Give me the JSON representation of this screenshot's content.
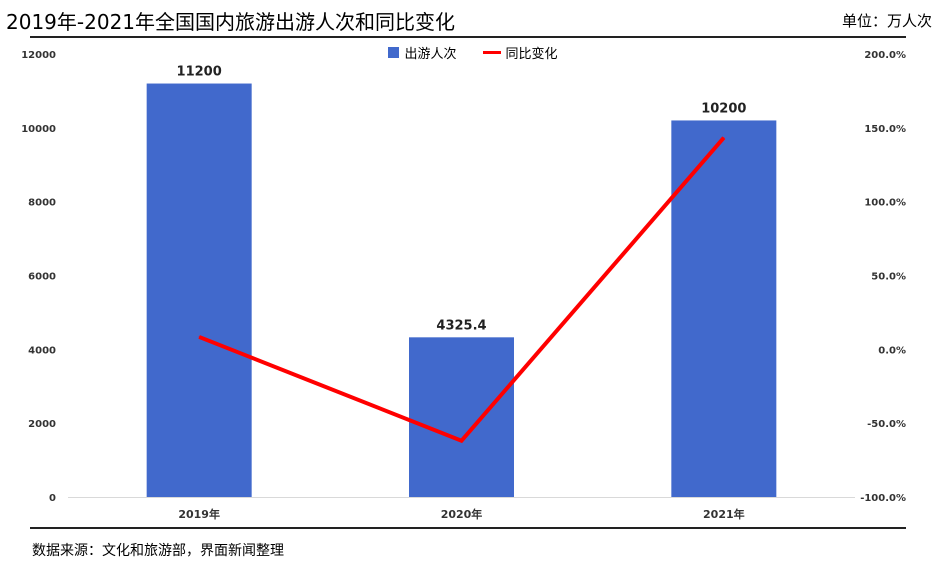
{
  "header": {
    "title": "2019年-2021年全国国内旅游出游人次和同比变化",
    "unit": "单位：万人次"
  },
  "footer": {
    "source": "数据来源：文化和旅游部，界面新闻整理"
  },
  "colors": {
    "bar": "#4169cc",
    "line": "#ff0000",
    "axis": "#d9d9d9"
  },
  "chart_data": {
    "type": "bar",
    "categories": [
      "2019年",
      "2020年",
      "2021年"
    ],
    "series": [
      {
        "name": "出游人次",
        "type": "bar",
        "axis": "left",
        "values": [
          11200,
          4325.4,
          10200
        ],
        "data_labels": [
          "11200",
          "4325.4",
          "10200"
        ]
      },
      {
        "name": "同比变化",
        "type": "line",
        "axis": "right",
        "values": [
          8.4,
          -61.9,
          143.3
        ]
      }
    ],
    "y_left": {
      "lim": [
        0,
        12000
      ],
      "ticks": [
        "0",
        "2000",
        "4000",
        "6000",
        "8000",
        "10000",
        "12000"
      ]
    },
    "y_right": {
      "lim": [
        -100,
        200
      ],
      "ticks": [
        "-100.0%",
        "-50.0%",
        "0.0%",
        "50.0%",
        "100.0%",
        "150.0%",
        "200.0%"
      ]
    },
    "legend_position": "top-center",
    "grid": false
  }
}
